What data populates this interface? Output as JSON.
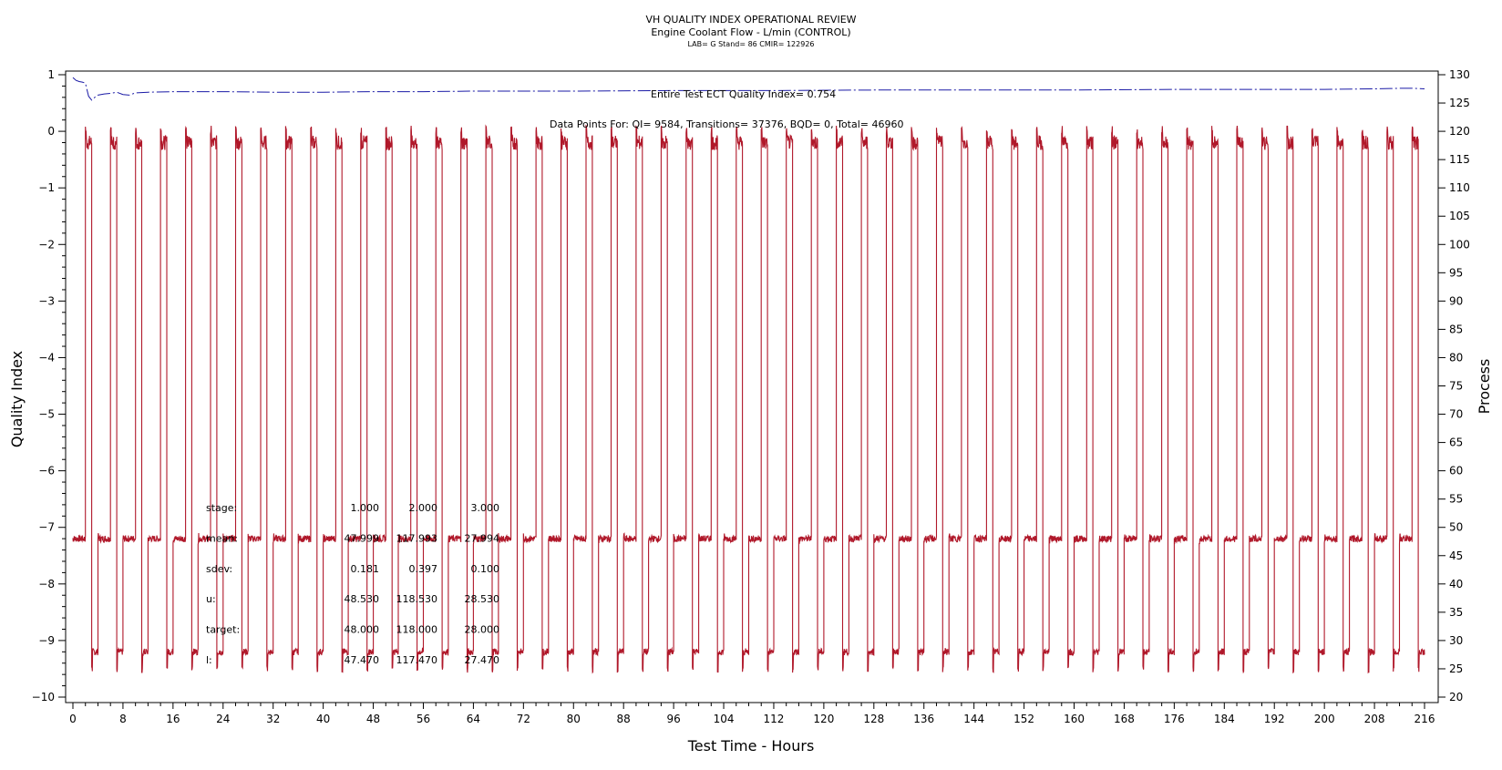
{
  "chart_data": {
    "type": "line",
    "title": "VH QUALITY INDEX OPERATIONAL REVIEW",
    "subtitle": "Engine Coolant Flow - L/min (CONTROL)",
    "subtitle2": "LAB= G Stand= 86 CMIR= 122926",
    "xlabel": "Test Time - Hours",
    "ylabel_left": "Quality Index",
    "ylabel_right": "Process",
    "xlim": [
      0,
      216
    ],
    "ylim_left": [
      -10,
      1
    ],
    "ylim_right": [
      20,
      130
    ],
    "x_ticks": [
      0,
      8,
      16,
      24,
      32,
      40,
      48,
      56,
      64,
      72,
      80,
      88,
      96,
      104,
      112,
      120,
      128,
      136,
      144,
      152,
      160,
      168,
      176,
      184,
      192,
      200,
      208,
      216
    ],
    "y_left_ticks": [
      1,
      0,
      -1,
      -2,
      -3,
      -4,
      -5,
      -6,
      -7,
      -8,
      -9,
      -10
    ],
    "y_right_ticks": [
      130,
      125,
      120,
      115,
      110,
      105,
      100,
      95,
      90,
      85,
      80,
      75,
      70,
      65,
      60,
      55,
      50,
      45,
      40,
      35,
      30,
      25,
      20
    ],
    "series": [
      {
        "role": "quality-index",
        "axis": "left",
        "color": "#1a1aa6",
        "x": [
          0,
          0.5,
          1,
          1.5,
          2,
          2.5,
          3,
          3.5,
          4,
          5,
          6,
          7,
          8,
          9,
          10,
          12,
          16,
          20,
          24,
          32,
          40,
          48,
          56,
          64,
          72,
          80,
          96,
          112,
          128,
          144,
          160,
          176,
          192,
          200,
          208,
          212,
          214,
          216
        ],
        "y": [
          0.95,
          0.9,
          0.88,
          0.87,
          0.85,
          0.62,
          0.55,
          0.6,
          0.64,
          0.66,
          0.67,
          0.69,
          0.65,
          0.64,
          0.68,
          0.69,
          0.7,
          0.7,
          0.7,
          0.69,
          0.69,
          0.7,
          0.7,
          0.71,
          0.71,
          0.71,
          0.72,
          0.72,
          0.73,
          0.73,
          0.73,
          0.74,
          0.74,
          0.74,
          0.75,
          0.76,
          0.76,
          0.75
        ]
      },
      {
        "role": "process",
        "axis": "right",
        "color": "#b0182a",
        "cycle_hours": 4,
        "levels": [
          {
            "stage": 1,
            "value": 48,
            "hours": [
              0,
              2
            ]
          },
          {
            "stage": 2,
            "value": 118,
            "hours": [
              2,
              3
            ]
          },
          {
            "stage": 3,
            "value": 28,
            "hours": [
              3,
              4
            ]
          }
        ],
        "x_range": [
          0,
          216
        ]
      }
    ],
    "annotations": [
      {
        "text": "Entire Test ECT Quality Index=  0.754"
      },
      {
        "text": "Data Points For: QI=  9584, Transitions= 37376, BQD=     0, Total= 46960"
      }
    ],
    "stats_table": {
      "rows": [
        {
          "label": "stage:",
          "values": [
            "1.000",
            "2.000",
            "3.000"
          ]
        },
        {
          "label": "mean:",
          "values": [
            "47.999",
            "117.993",
            "27.994"
          ]
        },
        {
          "label": "sdev:",
          "values": [
            "0.181",
            "0.397",
            "0.100"
          ]
        },
        {
          "label": "u:",
          "values": [
            "48.530",
            "118.530",
            "28.530"
          ]
        },
        {
          "label": "target:",
          "values": [
            "48.000",
            "118.000",
            "28.000"
          ]
        },
        {
          "label": "l:",
          "values": [
            "47.470",
            "117.470",
            "27.470"
          ]
        }
      ]
    },
    "grid": false
  }
}
